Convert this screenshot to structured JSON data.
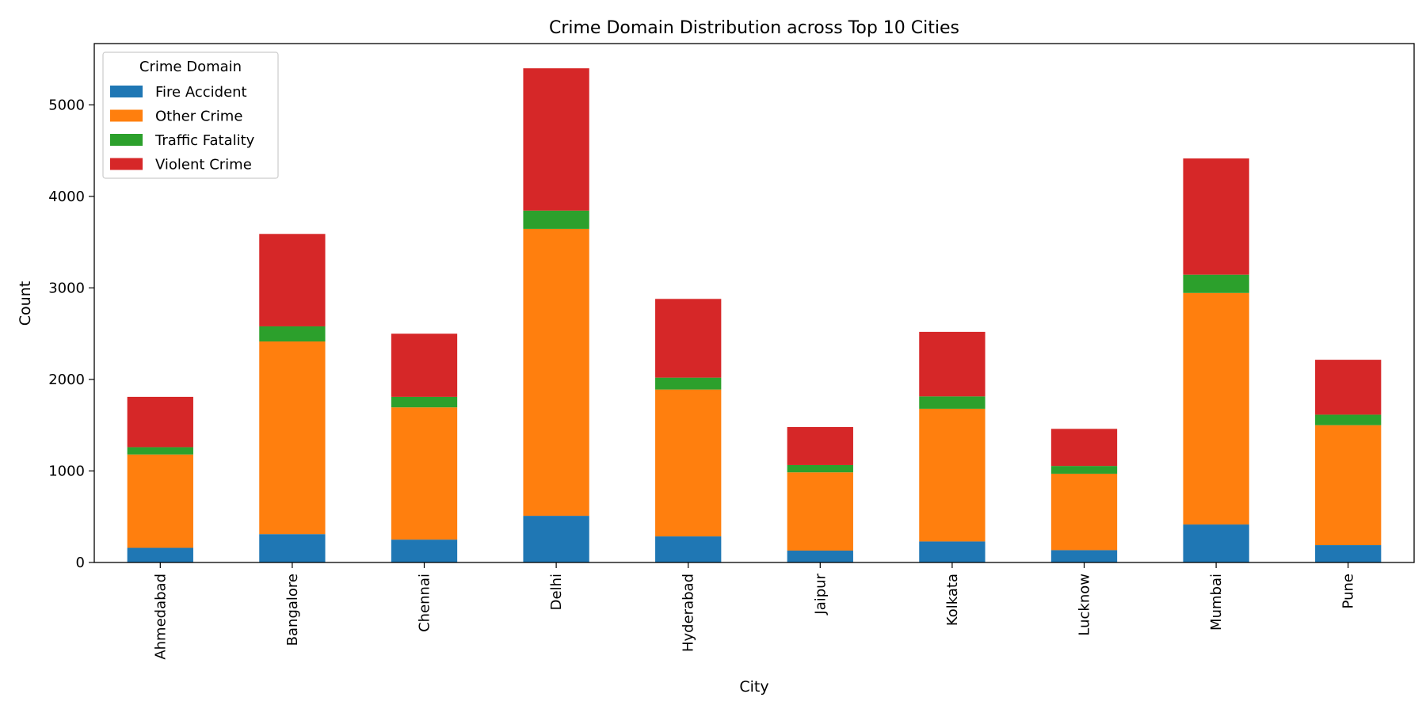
{
  "chart_data": {
    "type": "bar",
    "stacked": true,
    "title": "Crime Domain Distribution across Top 10 Cities",
    "xlabel": "City",
    "ylabel": "Count",
    "ylim": [
      0,
      5670
    ],
    "yticks": [
      0,
      1000,
      2000,
      3000,
      4000,
      5000
    ],
    "grid": false,
    "legend": {
      "title": "Crime Domain",
      "placement": "top-left"
    },
    "categories": [
      "Ahmedabad",
      "Bangalore",
      "Chennai",
      "Delhi",
      "Hyderabad",
      "Jaipur",
      "Kolkata",
      "Lucknow",
      "Mumbai",
      "Pune"
    ],
    "series": [
      {
        "name": "Fire Accident",
        "color": "#1f77b4",
        "values": [
          160,
          310,
          250,
          510,
          285,
          130,
          230,
          135,
          415,
          190
        ]
      },
      {
        "name": "Other Crime",
        "color": "#ff7f0e",
        "values": [
          1020,
          2105,
          1445,
          3135,
          1605,
          855,
          1450,
          835,
          2530,
          1310
        ]
      },
      {
        "name": "Traffic Fatality",
        "color": "#2ca02c",
        "values": [
          80,
          165,
          115,
          200,
          130,
          80,
          135,
          85,
          200,
          115
        ]
      },
      {
        "name": "Violent Crime",
        "color": "#d62728",
        "values": [
          550,
          1010,
          690,
          1555,
          860,
          415,
          705,
          405,
          1270,
          600
        ]
      }
    ]
  }
}
